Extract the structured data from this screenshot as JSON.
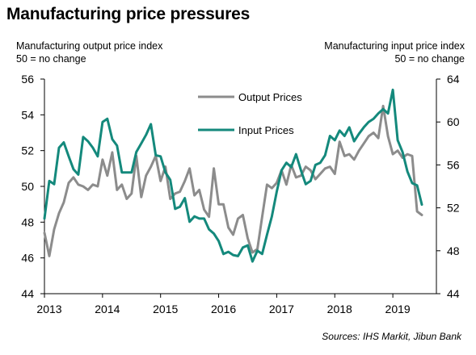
{
  "title": "Manufacturing price pressures",
  "source": "Sources:  IHS Markit, Jibun Bank",
  "colors": {
    "output": "#8c8c8c",
    "input": "#14897c"
  },
  "chart_data": {
    "type": "line",
    "title": "Manufacturing price pressures",
    "left_axis": {
      "label_line1": "Manufacturing  output price index",
      "label_line2": "50 = no change",
      "range": [
        44,
        56
      ],
      "ticks": [
        "44",
        "46",
        "48",
        "50",
        "52",
        "54",
        "56"
      ]
    },
    "right_axis": {
      "label_line1": "Manufacturing  input price index",
      "label_line2": "50 = no change",
      "range": [
        44,
        64
      ],
      "ticks": [
        "44",
        "48",
        "52",
        "56",
        "60",
        "64"
      ]
    },
    "x_axis": {
      "range": [
        2013.0,
        2019.75
      ],
      "ticks": [
        "2013",
        "2014",
        "2015",
        "2016",
        "2017",
        "2018",
        "2019"
      ]
    },
    "grid": false,
    "legend": "inside-top",
    "series": [
      {
        "name": "Output Prices",
        "axis": "left",
        "color": "#8c8c8c",
        "x": [
          2013.0,
          2013.083,
          2013.167,
          2013.25,
          2013.333,
          2013.417,
          2013.5,
          2013.583,
          2013.667,
          2013.75,
          2013.833,
          2013.917,
          2014.0,
          2014.083,
          2014.167,
          2014.25,
          2014.333,
          2014.417,
          2014.5,
          2014.583,
          2014.667,
          2014.75,
          2014.833,
          2014.917,
          2015.0,
          2015.083,
          2015.167,
          2015.25,
          2015.333,
          2015.417,
          2015.5,
          2015.583,
          2015.667,
          2015.75,
          2015.833,
          2015.917,
          2016.0,
          2016.083,
          2016.167,
          2016.25,
          2016.333,
          2016.417,
          2016.5,
          2016.583,
          2016.667,
          2016.75,
          2016.833,
          2016.917,
          2017.0,
          2017.083,
          2017.167,
          2017.25,
          2017.333,
          2017.417,
          2017.5,
          2017.583,
          2017.667,
          2017.75,
          2017.833,
          2017.917,
          2018.0,
          2018.083,
          2018.167,
          2018.25,
          2018.333,
          2018.417,
          2018.5,
          2018.583,
          2018.667,
          2018.75,
          2018.833,
          2018.917,
          2019.0,
          2019.083,
          2019.167,
          2019.25,
          2019.333,
          2019.417,
          2019.5
        ],
        "values": [
          47.4,
          46.1,
          47.6,
          48.5,
          49.1,
          50.2,
          50.5,
          50.1,
          50.0,
          49.8,
          50.1,
          50.0,
          51.5,
          50.6,
          51.9,
          49.8,
          50.1,
          49.3,
          49.6,
          51.7,
          49.4,
          50.6,
          51.1,
          51.7,
          50.3,
          51.1,
          49.3,
          49.6,
          49.7,
          50.3,
          51.0,
          49.5,
          49.8,
          48.7,
          48.3,
          51.0,
          49.0,
          49.0,
          47.7,
          47.3,
          48.2,
          48.4,
          47.1,
          46.3,
          46.5,
          48.3,
          50.1,
          49.9,
          50.2,
          50.9,
          50.1,
          51.2,
          50.5,
          50.6,
          51.1,
          50.9,
          50.4,
          50.7,
          51.0,
          51.1,
          50.7,
          52.5,
          51.7,
          51.8,
          51.5,
          52.0,
          52.4,
          52.8,
          53.0,
          52.7,
          54.5,
          52.8,
          51.8,
          52.0,
          51.6,
          51.8,
          51.7,
          48.6,
          48.4
        ]
      },
      {
        "name": "Input Prices",
        "axis": "right",
        "color": "#14897c",
        "x": [
          2013.0,
          2013.083,
          2013.167,
          2013.25,
          2013.333,
          2013.417,
          2013.5,
          2013.583,
          2013.667,
          2013.75,
          2013.833,
          2013.917,
          2014.0,
          2014.083,
          2014.167,
          2014.25,
          2014.333,
          2014.417,
          2014.5,
          2014.583,
          2014.667,
          2014.75,
          2014.833,
          2014.917,
          2015.0,
          2015.083,
          2015.167,
          2015.25,
          2015.333,
          2015.417,
          2015.5,
          2015.583,
          2015.667,
          2015.75,
          2015.833,
          2015.917,
          2016.0,
          2016.083,
          2016.167,
          2016.25,
          2016.333,
          2016.417,
          2016.5,
          2016.583,
          2016.667,
          2016.75,
          2016.833,
          2016.917,
          2017.0,
          2017.083,
          2017.167,
          2017.25,
          2017.333,
          2017.417,
          2017.5,
          2017.583,
          2017.667,
          2017.75,
          2017.833,
          2017.917,
          2018.0,
          2018.083,
          2018.167,
          2018.25,
          2018.333,
          2018.417,
          2018.5,
          2018.583,
          2018.667,
          2018.75,
          2018.833,
          2018.917,
          2019.0,
          2019.083,
          2019.167,
          2019.25,
          2019.333,
          2019.417,
          2019.5
        ],
        "values": [
          51.0,
          54.5,
          54.2,
          57.6,
          58.1,
          56.8,
          55.6,
          55.1,
          58.6,
          58.2,
          57.6,
          56.8,
          60.0,
          60.3,
          58.4,
          57.8,
          55.3,
          55.3,
          55.3,
          57.2,
          58.0,
          58.8,
          59.8,
          56.9,
          56.8,
          55.3,
          54.6,
          51.9,
          52.1,
          52.9,
          50.7,
          51.2,
          51.0,
          51.0,
          50.0,
          49.6,
          48.9,
          47.7,
          47.9,
          47.6,
          47.5,
          48.3,
          48.5,
          47.0,
          48.0,
          47.7,
          49.5,
          51.2,
          53.5,
          55.5,
          56.2,
          55.8,
          57.0,
          55.5,
          54.2,
          54.5,
          56.0,
          56.2,
          56.9,
          58.7,
          58.3,
          59.2,
          58.7,
          59.5,
          58.2,
          58.9,
          59.5,
          60.0,
          60.3,
          60.8,
          61.2,
          60.8,
          63.0,
          58.3,
          57.2,
          55.4,
          54.3,
          54.1,
          52.3
        ]
      }
    ]
  }
}
